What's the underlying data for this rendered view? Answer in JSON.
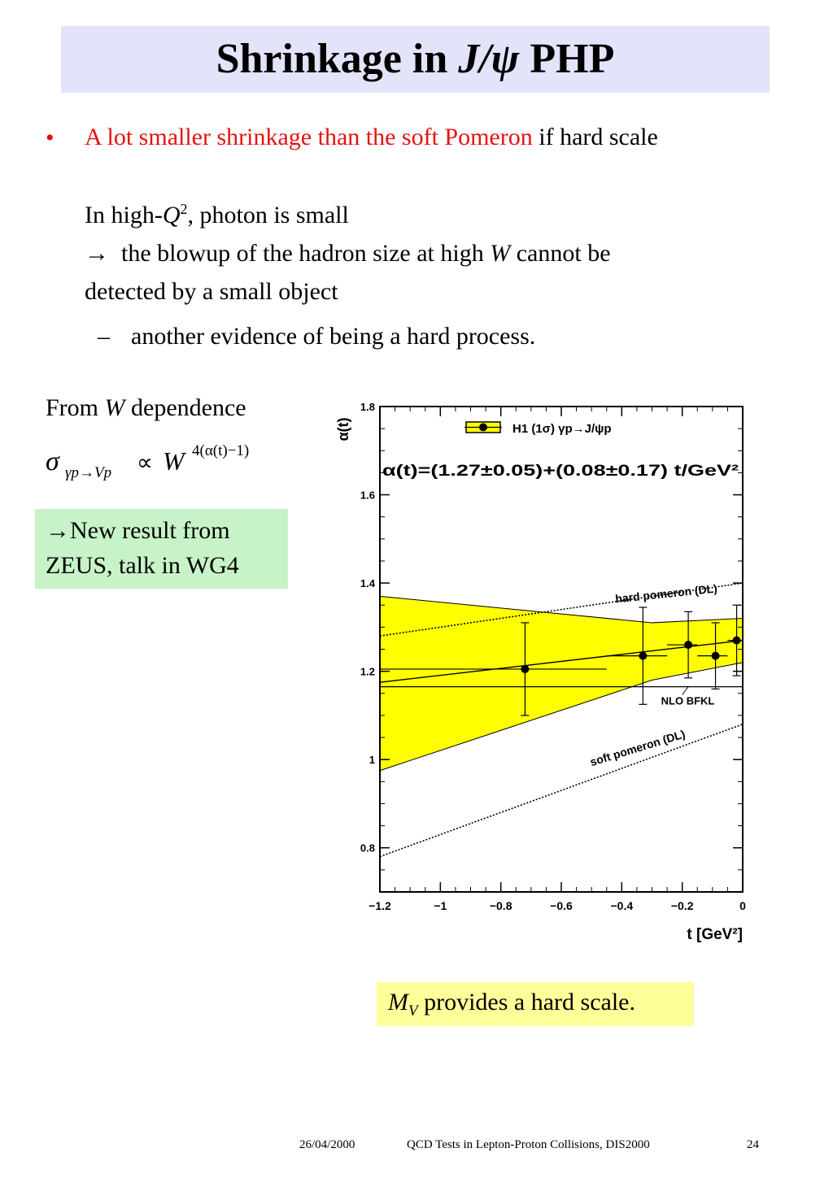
{
  "title": {
    "pre": "Shrinkage in ",
    "italic": "J/ψ",
    "post": " PHP"
  },
  "bullet": {
    "marker": "•",
    "red_text": "A lot smaller shrinkage than the soft Pomeron",
    "black_text": " if hard scale"
  },
  "body": {
    "line1_pre": "In high-",
    "line1_q": "Q",
    "line1_sup": "2",
    "line1_post": ", photon is small",
    "line2_arrow": "→",
    "line2_pre": "  the blowup of the hadron size at high ",
    "line2_w": "W",
    "line2_post": " cannot be",
    "line3": "detected by a small object",
    "sub_dash": "–",
    "sub_text": "another evidence of being a hard process."
  },
  "left": {
    "from_pre": "From ",
    "from_w": "W",
    "from_post": " dependence",
    "formula": {
      "sigma": "σ",
      "sub": "γp→Vp",
      "prop": "∝",
      "w": "W",
      "exp": "4(α(t)−1)"
    },
    "green_line1": "→New result from",
    "green_line2": "ZEUS, talk in WG4"
  },
  "yellow": {
    "mv": "M",
    "mv_sub": "V",
    "text": " provides a hard scale."
  },
  "footer": {
    "date": "26/04/2000",
    "conf": "QCD Tests in Lepton-Proton Collisions, DIS2000",
    "page": "24"
  },
  "colors": {
    "title_bg": "#e3e3f9",
    "red": "#e81010",
    "green_box": "#c8f3c8",
    "yellow_box": "#ffff99",
    "band": "#ffff00"
  },
  "chart_data": {
    "type": "scatter",
    "ylabel": "α(t)",
    "xlabel": "t [GeV²]",
    "xlim": [
      -1.2,
      0
    ],
    "ylim": [
      0.7,
      1.8
    ],
    "x_ticks": [
      -1.2,
      -1,
      -0.8,
      -0.6,
      -0.4,
      -0.2,
      0
    ],
    "x_tick_labels": [
      "−1.2",
      "−1",
      "−0.8",
      "−0.6",
      "−0.4",
      "−0.2",
      "0"
    ],
    "y_ticks": [
      0.8,
      1,
      1.2,
      1.4,
      1.6,
      1.8
    ],
    "y_tick_labels": [
      "0.8",
      "1",
      "1.2",
      "1.4",
      "1.6",
      "1.8"
    ],
    "legend": "H1 (1σ)  γp→J/ψp",
    "fit_text": "α(t)=(1.27±0.05)+(0.08±0.17) t/GeV²",
    "points": [
      {
        "x": -0.72,
        "y": 1.205,
        "yerr": 0.105,
        "xlo": -1.2,
        "xhi": -0.45
      },
      {
        "x": -0.33,
        "y": 1.235,
        "yerr": 0.11,
        "xlo": -0.45,
        "xhi": -0.25
      },
      {
        "x": -0.18,
        "y": 1.26,
        "yerr": 0.075,
        "xlo": -0.25,
        "xhi": -0.15
      },
      {
        "x": -0.09,
        "y": 1.235,
        "yerr": 0.075,
        "xlo": -0.15,
        "xhi": -0.05
      },
      {
        "x": -0.02,
        "y": 1.27,
        "yerr": 0.08,
        "xlo": -0.05,
        "xhi": 0
      }
    ],
    "band": {
      "upper": [
        [
          -1.2,
          1.37
        ],
        [
          -0.3,
          1.31
        ],
        [
          0,
          1.32
        ]
      ],
      "lower": [
        [
          -1.2,
          0.975
        ],
        [
          -0.3,
          1.18
        ],
        [
          0,
          1.22
        ]
      ]
    },
    "fit_line": [
      [
        -1.2,
        1.175
      ],
      [
        0,
        1.27
      ]
    ],
    "hard_pomeron": {
      "label": "hard pomeron (DL)",
      "line": [
        [
          -1.2,
          1.28
        ],
        [
          0,
          1.4
        ]
      ]
    },
    "soft_pomeron": {
      "label": "soft pomeron (DL)",
      "line": [
        [
          -1.2,
          0.78
        ],
        [
          0,
          1.08
        ]
      ]
    },
    "nlo_bfkl": {
      "label": "NLO BFKL",
      "y": 1.165
    }
  }
}
